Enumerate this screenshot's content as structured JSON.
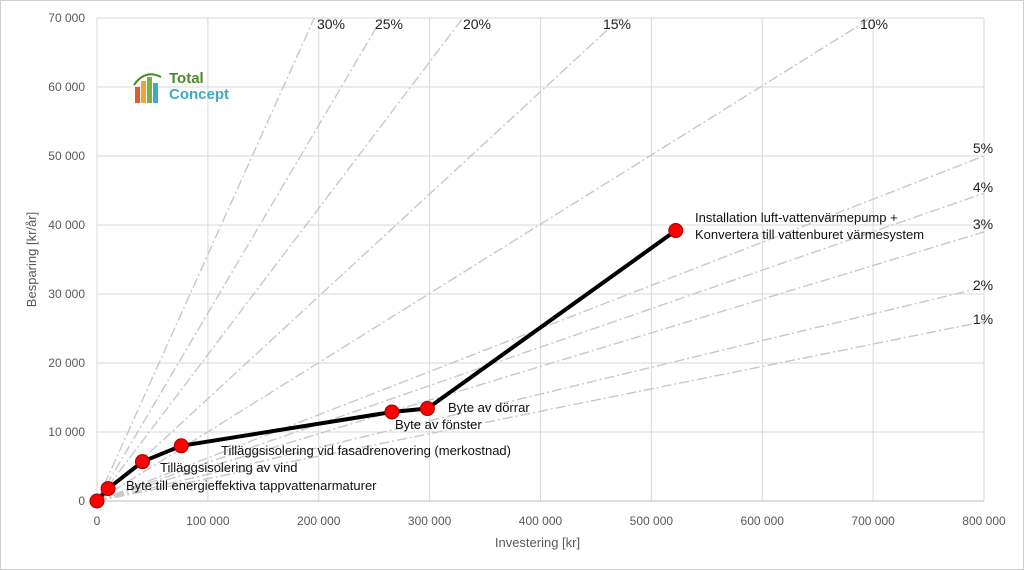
{
  "chart_data": {
    "type": "line",
    "xlabel": "Investering [kr]",
    "ylabel": "Besparing [kr/år]",
    "xlim": [
      0,
      800000
    ],
    "ylim": [
      0,
      70000
    ],
    "x_ticks": [
      0,
      100000,
      200000,
      300000,
      400000,
      500000,
      600000,
      700000,
      800000
    ],
    "x_tick_labels": [
      "0",
      "100 000",
      "200 000",
      "300 000",
      "400 000",
      "500 000",
      "600 000",
      "700 000",
      "800 000"
    ],
    "y_ticks": [
      0,
      10000,
      20000,
      30000,
      40000,
      50000,
      60000,
      70000
    ],
    "y_tick_labels": [
      "0",
      "10 000",
      "20 000",
      "30 000",
      "40 000",
      "50 000",
      "60 000",
      "70 000"
    ],
    "grid": true,
    "series": [
      {
        "points": [
          {
            "x": 0,
            "y": 0,
            "label": ""
          },
          {
            "x": 10000,
            "y": 1800,
            "label": "Byte till energieffektiva tappvattenarmaturer"
          },
          {
            "x": 41000,
            "y": 5700,
            "label": "Tilläggsisolering av vind"
          },
          {
            "x": 76000,
            "y": 8000,
            "label": "Tilläggsisolering vid fasadrenovering (merkostnad)"
          },
          {
            "x": 266000,
            "y": 12900,
            "label": "Byte av fönster"
          },
          {
            "x": 298000,
            "y": 13400,
            "label": "Byte av dörrar"
          },
          {
            "x": 522000,
            "y": 39200,
            "label": "Installation luft-vattenvärmepump +\nKonvertera till vattenburet värmesystem"
          }
        ]
      }
    ],
    "reference_lines": [
      {
        "label": "30%",
        "end": [
          196000,
          70000
        ]
      },
      {
        "label": "25%",
        "end": [
          257000,
          70000
        ]
      },
      {
        "label": "20%",
        "end": [
          330000,
          70000
        ]
      },
      {
        "label": "15%",
        "end": [
          472000,
          70000
        ]
      },
      {
        "label": "10%",
        "end": [
          698000,
          70000
        ]
      },
      {
        "label": "5%",
        "end": [
          800000,
          50000
        ]
      },
      {
        "label": "4%",
        "end": [
          800000,
          44600
        ]
      },
      {
        "label": "3%",
        "end": [
          800000,
          39000
        ]
      },
      {
        "label": "2%",
        "end": [
          800000,
          31000
        ]
      },
      {
        "label": "1%",
        "end": [
          800000,
          26000
        ]
      }
    ]
  },
  "logo": {
    "line1": "Total",
    "line2": "Concept"
  }
}
